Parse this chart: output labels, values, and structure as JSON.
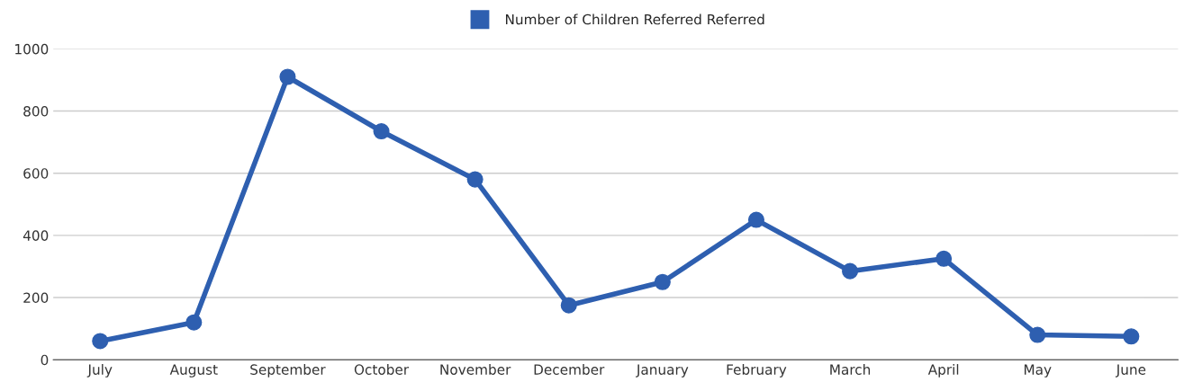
{
  "chart_data": {
    "type": "line",
    "categories": [
      "July",
      "August",
      "September",
      "October",
      "November",
      "December",
      "January",
      "February",
      "March",
      "April",
      "May",
      "June"
    ],
    "series": [
      {
        "name": "Number of Children Referred Referred",
        "color": "#2e5fb0",
        "values": [
          60,
          120,
          910,
          735,
          580,
          175,
          250,
          450,
          285,
          325,
          80,
          75
        ]
      }
    ],
    "ylim": [
      0,
      1000
    ],
    "yticks": [
      0,
      200,
      400,
      600,
      800,
      1000
    ],
    "grid": "y",
    "legend": "top",
    "marker": "circle",
    "line_style": "solid"
  }
}
